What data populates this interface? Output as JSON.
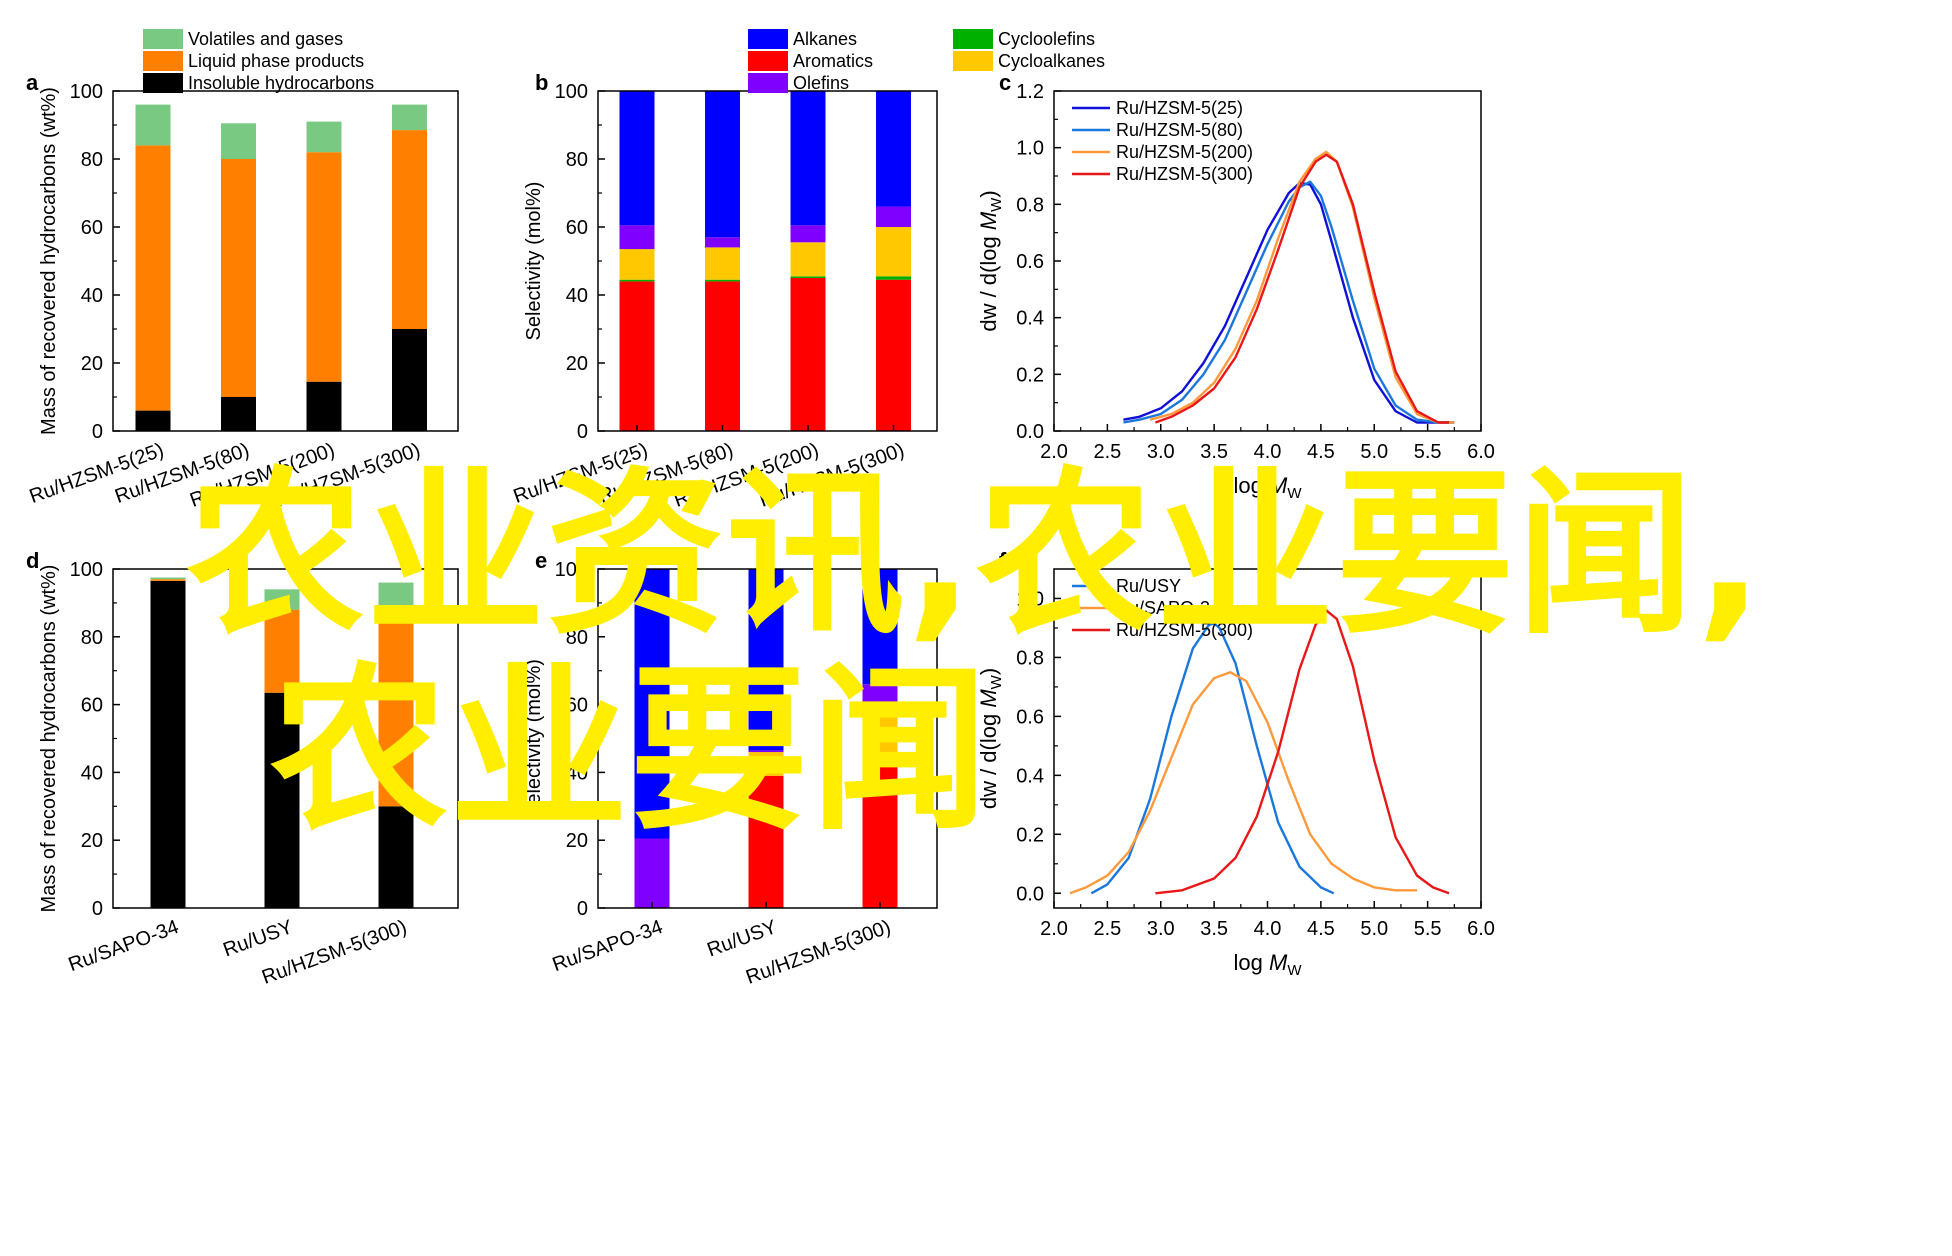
{
  "colors": {
    "volatiles": "#79c982",
    "liquid": "#ff8000",
    "insoluble": "#000000",
    "alkanes": "#0000ff",
    "olefins": "#8000ff",
    "cycloalkanes": "#ffc800",
    "cycloolefins": "#00b000",
    "aromatics": "#ff0000",
    "line_25": "#1010d8",
    "line_80": "#1a78dc",
    "line_200": "#ff9a3c",
    "line_300": "#e81818",
    "line_usy": "#1a78dc",
    "line_sapo": "#ff9a3c",
    "overlay_text": "#ffee00"
  },
  "overlay": {
    "line1": "农业资讯,农业要闻,",
    "line2": "农业要闻"
  },
  "chart_data": [
    {
      "panel": "a",
      "type": "bar",
      "stacked": true,
      "categories": [
        "Ru/HZSM-5(25)",
        "Ru/HZSM-5(80)",
        "Ru/HZSM-5(200)",
        "Ru/HZSM-5(300)"
      ],
      "series": [
        {
          "name": "Insoluble hydrocarbons",
          "color_key": "insoluble",
          "values": [
            6,
            10,
            14.5,
            30
          ]
        },
        {
          "name": "Liquid phase products",
          "color_key": "liquid",
          "values": [
            78,
            70,
            67.5,
            58.5
          ]
        },
        {
          "name": "Volatiles and gases",
          "color_key": "volatiles",
          "values": [
            12,
            10.5,
            9,
            7.5
          ]
        }
      ],
      "legend_order": [
        2,
        1,
        0
      ],
      "xlabel": "",
      "ylabel": "Mass of recovered hydrocarbons (wt%)",
      "ylim": [
        0,
        100
      ],
      "yticks": [
        "0",
        "20",
        "40",
        "60",
        "80",
        "100"
      ],
      "legend": "above"
    },
    {
      "panel": "b",
      "type": "bar",
      "stacked": true,
      "categories": [
        "Ru/HZSM-5(25)",
        "Ru/HZSM-5(80)",
        "Ru/HZSM-5(200)",
        "Ru/HZSM-5(300)"
      ],
      "series": [
        {
          "name": "Aromatics",
          "color_key": "aromatics",
          "values": [
            44,
            44,
            45,
            44.5
          ]
        },
        {
          "name": "Cycloolefins",
          "color_key": "cycloolefins",
          "values": [
            0.5,
            0.5,
            0.5,
            1
          ]
        },
        {
          "name": "Cycloalkanes",
          "color_key": "cycloalkanes",
          "values": [
            9,
            9.5,
            10,
            14.5
          ]
        },
        {
          "name": "Olefins",
          "color_key": "olefins",
          "values": [
            7,
            3,
            5,
            6
          ]
        },
        {
          "name": "Alkanes",
          "color_key": "alkanes",
          "values": [
            39.5,
            43,
            39.5,
            34
          ]
        }
      ],
      "legend_order": [
        4,
        0,
        3,
        1,
        2
      ],
      "xlabel": "",
      "ylabel": "Selectivity (mol%)",
      "ylim": [
        0,
        100
      ],
      "yticks": [
        "0",
        "20",
        "40",
        "60",
        "80",
        "100"
      ],
      "legend": "above"
    },
    {
      "panel": "c",
      "type": "line",
      "xlim": [
        2.0,
        6.0
      ],
      "ylim": [
        0,
        1.2
      ],
      "xticks": [
        "2.0",
        "2.5",
        "3.0",
        "3.5",
        "4.0",
        "4.5",
        "5.0",
        "5.5",
        "6.0"
      ],
      "yticks": [
        "0.0",
        "0.2",
        "0.4",
        "0.6",
        "0.8",
        "1.0",
        "1.2"
      ],
      "xlabel": "log M_W",
      "ylabel": "dw / d(log M_W)",
      "legend": "top-left",
      "series": [
        {
          "name": "Ru/HZSM-5(25)",
          "color_key": "line_25",
          "x": [
            2.65,
            2.8,
            3.0,
            3.2,
            3.4,
            3.6,
            3.8,
            4.0,
            4.2,
            4.3,
            4.4,
            4.5,
            4.6,
            4.8,
            5.0,
            5.2,
            5.4,
            5.6,
            5.75
          ],
          "y": [
            0.04,
            0.05,
            0.08,
            0.14,
            0.24,
            0.37,
            0.54,
            0.71,
            0.84,
            0.875,
            0.87,
            0.8,
            0.67,
            0.4,
            0.18,
            0.07,
            0.03,
            0.03,
            0.03
          ]
        },
        {
          "name": "Ru/HZSM-5(80)",
          "color_key": "line_80",
          "x": [
            2.65,
            2.8,
            3.0,
            3.2,
            3.4,
            3.6,
            3.8,
            4.0,
            4.2,
            4.3,
            4.4,
            4.5,
            4.6,
            4.8,
            5.0,
            5.2,
            5.4,
            5.6,
            5.75
          ],
          "y": [
            0.03,
            0.04,
            0.06,
            0.11,
            0.2,
            0.32,
            0.49,
            0.66,
            0.81,
            0.86,
            0.88,
            0.83,
            0.72,
            0.46,
            0.22,
            0.09,
            0.04,
            0.03,
            0.03
          ]
        },
        {
          "name": "Ru/HZSM-5(200)",
          "color_key": "line_200",
          "x": [
            2.9,
            3.1,
            3.3,
            3.5,
            3.7,
            3.9,
            4.1,
            4.3,
            4.45,
            4.55,
            4.65,
            4.8,
            5.0,
            5.2,
            5.4,
            5.6,
            5.75
          ],
          "y": [
            0.04,
            0.06,
            0.1,
            0.17,
            0.29,
            0.46,
            0.68,
            0.88,
            0.96,
            0.985,
            0.95,
            0.79,
            0.47,
            0.19,
            0.06,
            0.03,
            0.03
          ]
        },
        {
          "name": "Ru/HZSM-5(300)",
          "color_key": "line_300",
          "x": [
            2.95,
            3.1,
            3.3,
            3.5,
            3.7,
            3.9,
            4.1,
            4.3,
            4.45,
            4.55,
            4.65,
            4.8,
            5.0,
            5.2,
            5.4,
            5.6,
            5.7
          ],
          "y": [
            0.03,
            0.05,
            0.09,
            0.15,
            0.26,
            0.43,
            0.64,
            0.86,
            0.95,
            0.975,
            0.95,
            0.8,
            0.49,
            0.21,
            0.07,
            0.03,
            0.03
          ]
        }
      ]
    },
    {
      "panel": "d",
      "type": "bar",
      "stacked": true,
      "categories": [
        "Ru/SAPO-34",
        "Ru/USY",
        "Ru/HZSM-5(300)"
      ],
      "series": [
        {
          "name": "Insoluble hydrocarbons",
          "color_key": "insoluble",
          "values": [
            96.5,
            63.5,
            30
          ]
        },
        {
          "name": "Liquid phase products",
          "color_key": "liquid",
          "values": [
            0.5,
            24.5,
            58.5
          ]
        },
        {
          "name": "Volatiles and gases",
          "color_key": "volatiles",
          "values": [
            0.5,
            6,
            7.5
          ]
        }
      ],
      "xlabel": "",
      "ylabel": "Mass of recovered hydrocarbons (wt%)",
      "ylim": [
        0,
        100
      ],
      "yticks": [
        "0",
        "20",
        "40",
        "60",
        "80",
        "100"
      ]
    },
    {
      "panel": "e",
      "type": "bar",
      "stacked": true,
      "categories": [
        "Ru/SAPO-34",
        "Ru/USY",
        "Ru/HZSM-5(300)"
      ],
      "series": [
        {
          "name": "Aromatics",
          "color_key": "aromatics",
          "values": [
            0,
            39,
            44.5
          ]
        },
        {
          "name": "Cycloolefins",
          "color_key": "cycloolefins",
          "values": [
            0,
            0,
            1
          ]
        },
        {
          "name": "Cycloalkanes",
          "color_key": "cycloalkanes",
          "values": [
            0,
            7,
            14.5
          ]
        },
        {
          "name": "Olefins",
          "color_key": "olefins",
          "values": [
            20.5,
            0.5,
            6
          ]
        },
        {
          "name": "Alkanes",
          "color_key": "alkanes",
          "values": [
            79.5,
            53.5,
            34
          ]
        }
      ],
      "xlabel": "",
      "ylabel": "Selectivity (mol%)",
      "ylim": [
        0,
        100
      ],
      "yticks": [
        "0",
        "20",
        "40",
        "60",
        "80",
        "100"
      ]
    },
    {
      "panel": "f",
      "type": "line",
      "xlim": [
        2.0,
        6.0
      ],
      "ylim": [
        -0.05,
        1.1
      ],
      "xticks": [
        "2.0",
        "2.5",
        "3.0",
        "3.5",
        "4.0",
        "4.5",
        "5.0",
        "5.5",
        "6.0"
      ],
      "yticks": [
        "0.0",
        "0.2",
        "0.4",
        "0.6",
        "0.8",
        "1.0"
      ],
      "xlabel": "log M_W",
      "ylabel": "dw / d(log M_W)",
      "legend": "top-left",
      "series": [
        {
          "name": "Ru/USY",
          "color_key": "line_usy",
          "x": [
            2.35,
            2.5,
            2.7,
            2.9,
            3.1,
            3.3,
            3.45,
            3.5,
            3.55,
            3.7,
            3.9,
            4.1,
            4.3,
            4.5,
            4.62
          ],
          "y": [
            0.0,
            0.03,
            0.12,
            0.32,
            0.6,
            0.83,
            0.91,
            0.915,
            0.9,
            0.78,
            0.5,
            0.24,
            0.09,
            0.02,
            0.0
          ]
        },
        {
          "name": "Ru/SAPO-34",
          "color_key": "line_sapo",
          "x": [
            2.15,
            2.3,
            2.5,
            2.7,
            2.9,
            3.1,
            3.3,
            3.5,
            3.65,
            3.8,
            4.0,
            4.2,
            4.4,
            4.6,
            4.8,
            5.0,
            5.2,
            5.4
          ],
          "y": [
            0.0,
            0.02,
            0.06,
            0.14,
            0.28,
            0.46,
            0.64,
            0.73,
            0.75,
            0.72,
            0.58,
            0.38,
            0.2,
            0.1,
            0.05,
            0.02,
            0.01,
            0.01
          ]
        },
        {
          "name": "Ru/HZSM-5(300)",
          "color_key": "line_300",
          "x": [
            2.95,
            3.2,
            3.5,
            3.7,
            3.9,
            4.1,
            4.3,
            4.45,
            4.55,
            4.65,
            4.8,
            5.0,
            5.2,
            5.4,
            5.55,
            5.7
          ],
          "y": [
            0.0,
            0.01,
            0.05,
            0.12,
            0.26,
            0.48,
            0.76,
            0.91,
            0.96,
            0.93,
            0.77,
            0.45,
            0.19,
            0.06,
            0.02,
            0.0
          ]
        }
      ]
    }
  ]
}
